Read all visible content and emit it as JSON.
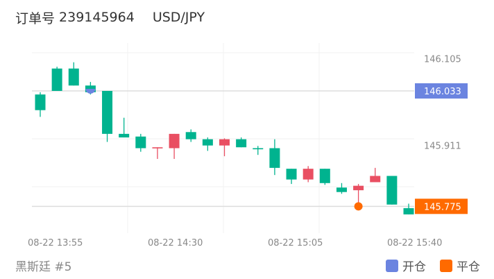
{
  "header": {
    "order_label": "订单号",
    "order_number": "239145964",
    "symbol": "USD/JPY"
  },
  "footer": {
    "account": "黑斯廷 #5"
  },
  "legend": [
    {
      "label": "开仓",
      "color": "#6b84e0"
    },
    {
      "label": "平仓",
      "color": "#ff6a00"
    }
  ],
  "colors": {
    "up": "#00b38f",
    "down": "#e94f62",
    "open_marker": "#6b84e0",
    "close_marker": "#ff6a00"
  },
  "chart_data": {
    "type": "candlestick",
    "y_ticks": [
      "146.105",
      "145.911"
    ],
    "x_ticks": [
      "08-22 13:55",
      "08-22 14:30",
      "08-22 15:05",
      "08-22 15:40"
    ],
    "ylim": [
      145.715,
      146.14
    ],
    "markers": {
      "open": {
        "price": 146.033,
        "label": "146.033"
      },
      "close": {
        "price": 145.775,
        "label": "145.775"
      }
    },
    "grid": true,
    "candles": [
      {
        "o": 145.99,
        "c": 146.025,
        "h": 146.03,
        "l": 145.975
      },
      {
        "o": 146.033,
        "c": 146.083,
        "h": 146.087,
        "l": 146.033
      },
      {
        "o": 146.045,
        "c": 146.083,
        "h": 146.097,
        "l": 146.045
      },
      {
        "o": 146.03,
        "c": 146.045,
        "h": 146.053,
        "l": 146.025
      },
      {
        "o": 145.937,
        "c": 146.033,
        "h": 146.033,
        "l": 145.919
      },
      {
        "o": 145.929,
        "c": 145.937,
        "h": 145.973,
        "l": 145.929
      },
      {
        "o": 145.905,
        "c": 145.931,
        "h": 145.937,
        "l": 145.897
      },
      {
        "o": 145.907,
        "c": 145.905,
        "h": 145.907,
        "l": 145.881
      },
      {
        "o": 145.937,
        "c": 145.905,
        "h": 145.937,
        "l": 145.881
      },
      {
        "o": 145.925,
        "c": 145.941,
        "h": 145.947,
        "l": 145.919
      },
      {
        "o": 145.911,
        "c": 145.925,
        "h": 145.929,
        "l": 145.899
      },
      {
        "o": 145.925,
        "c": 145.911,
        "h": 145.927,
        "l": 145.887
      },
      {
        "o": 145.907,
        "c": 145.925,
        "h": 145.929,
        "l": 145.907
      },
      {
        "o": 145.905,
        "c": 145.905,
        "h": 145.91,
        "l": 145.89
      },
      {
        "o": 145.861,
        "c": 145.905,
        "h": 145.925,
        "l": 145.845
      },
      {
        "o": 145.835,
        "c": 145.859,
        "h": 145.859,
        "l": 145.825
      },
      {
        "o": 145.859,
        "c": 145.835,
        "h": 145.865,
        "l": 145.829
      },
      {
        "o": 145.827,
        "c": 145.859,
        "h": 145.859,
        "l": 145.823
      },
      {
        "o": 145.807,
        "c": 145.817,
        "h": 145.827,
        "l": 145.803
      },
      {
        "o": 145.821,
        "c": 145.811,
        "h": 145.825,
        "l": 145.767
      },
      {
        "o": 145.843,
        "c": 145.829,
        "h": 145.861,
        "l": 145.829
      },
      {
        "o": 145.779,
        "c": 145.843,
        "h": 145.843,
        "l": 145.779
      },
      {
        "o": 145.757,
        "c": 145.771,
        "h": 145.781,
        "l": 145.757
      }
    ]
  }
}
